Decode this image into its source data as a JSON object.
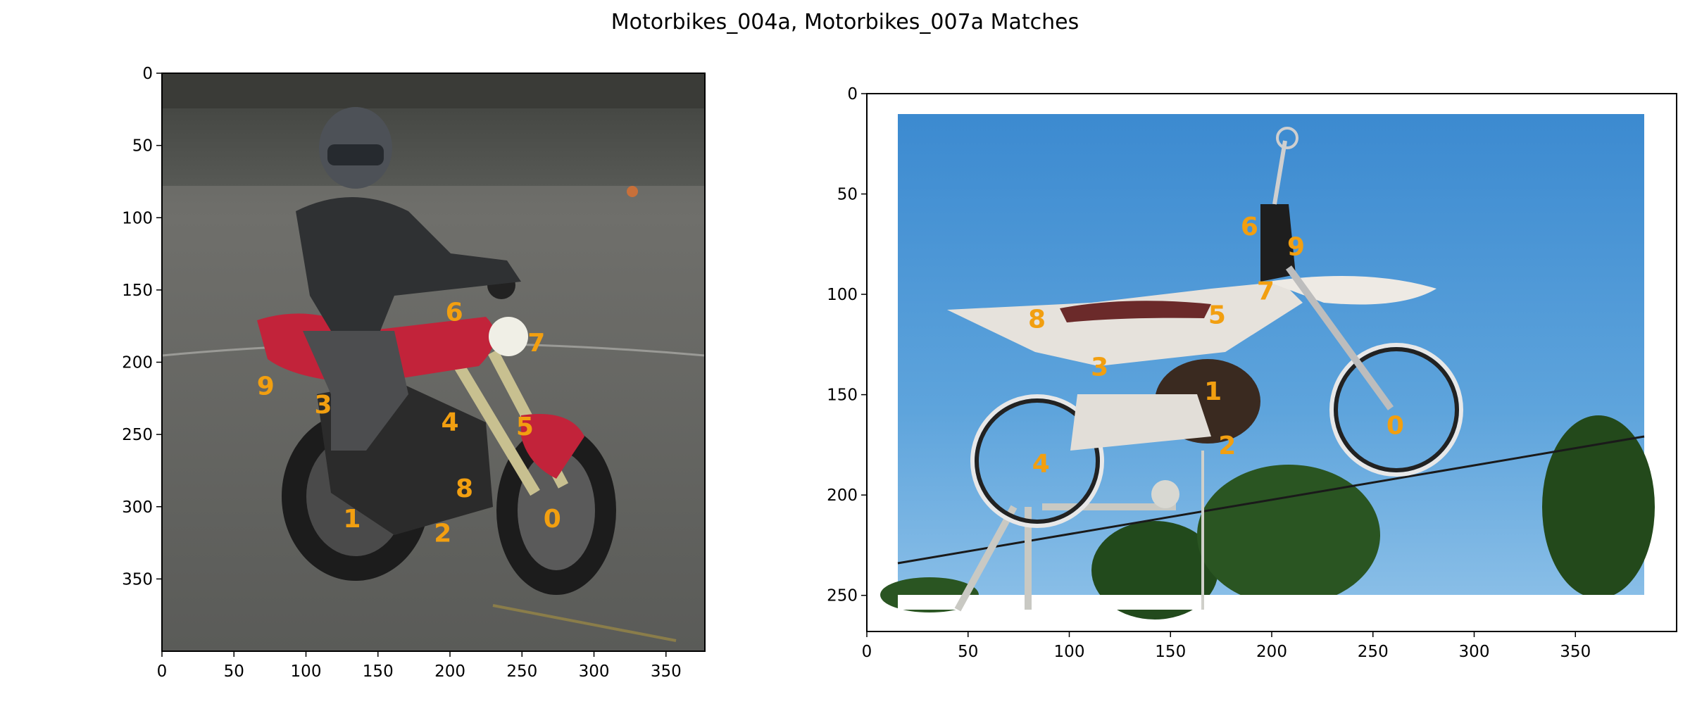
{
  "title": "Motorbikes_004a, Motorbikes_007a Matches",
  "colors": {
    "marker": "#f29f10",
    "axis": "#000000"
  },
  "chart_data": [
    {
      "type": "scatter",
      "image": "Motorbikes_004a",
      "xlim": [
        0,
        377
      ],
      "ylim": [
        400,
        0
      ],
      "xticks": [
        0,
        50,
        100,
        150,
        200,
        250,
        300,
        350
      ],
      "yticks": [
        0,
        50,
        100,
        150,
        200,
        250,
        300,
        350
      ],
      "grid": false,
      "points": [
        {
          "label": "0",
          "x": 271,
          "y": 308
        },
        {
          "label": "1",
          "x": 132,
          "y": 308
        },
        {
          "label": "2",
          "x": 195,
          "y": 318
        },
        {
          "label": "3",
          "x": 112,
          "y": 229
        },
        {
          "label": "4",
          "x": 200,
          "y": 241
        },
        {
          "label": "5",
          "x": 252,
          "y": 244
        },
        {
          "label": "6",
          "x": 203,
          "y": 165
        },
        {
          "label": "7",
          "x": 260,
          "y": 186
        },
        {
          "label": "8",
          "x": 210,
          "y": 287
        },
        {
          "label": "9",
          "x": 72,
          "y": 216
        }
      ]
    },
    {
      "type": "scatter",
      "image": "Motorbikes_007a",
      "xlim": [
        0,
        400
      ],
      "ylim": [
        268,
        0
      ],
      "xticks": [
        0,
        50,
        100,
        150,
        200,
        250,
        300,
        350
      ],
      "yticks": [
        0,
        50,
        100,
        150,
        200,
        250
      ],
      "grid": false,
      "points": [
        {
          "label": "0",
          "x": 261,
          "y": 165
        },
        {
          "label": "1",
          "x": 171,
          "y": 148
        },
        {
          "label": "2",
          "x": 178,
          "y": 175
        },
        {
          "label": "3",
          "x": 115,
          "y": 136
        },
        {
          "label": "4",
          "x": 86,
          "y": 184
        },
        {
          "label": "5",
          "x": 173,
          "y": 110
        },
        {
          "label": "6",
          "x": 189,
          "y": 66
        },
        {
          "label": "7",
          "x": 197,
          "y": 98
        },
        {
          "label": "8",
          "x": 84,
          "y": 112
        },
        {
          "label": "9",
          "x": 212,
          "y": 76
        }
      ]
    }
  ]
}
